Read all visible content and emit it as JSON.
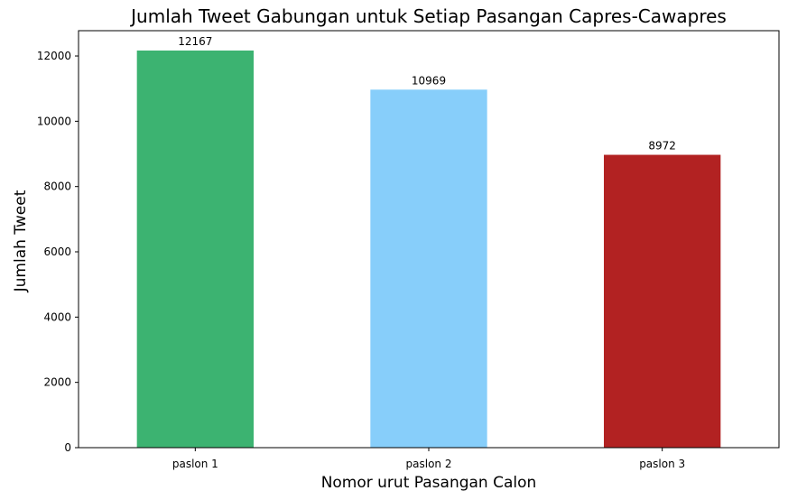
{
  "chart_data": {
    "type": "bar",
    "title": "Jumlah Tweet Gabungan untuk Setiap Pasangan Capres-Cawapres",
    "xlabel": "Nomor urut Pasangan Calon",
    "ylabel": "Jumlah Tweet",
    "categories": [
      "paslon 1",
      "paslon 2",
      "paslon 3"
    ],
    "values": [
      12167,
      10969,
      8972
    ],
    "data_labels": [
      "12167",
      "10969",
      "8972"
    ],
    "colors": [
      "#3cb371",
      "#87cefa",
      "#b22222"
    ],
    "ylim": [
      0,
      12775
    ],
    "yticks": [
      0,
      2000,
      4000,
      6000,
      8000,
      10000,
      12000
    ],
    "grid": false,
    "legend": "none"
  }
}
